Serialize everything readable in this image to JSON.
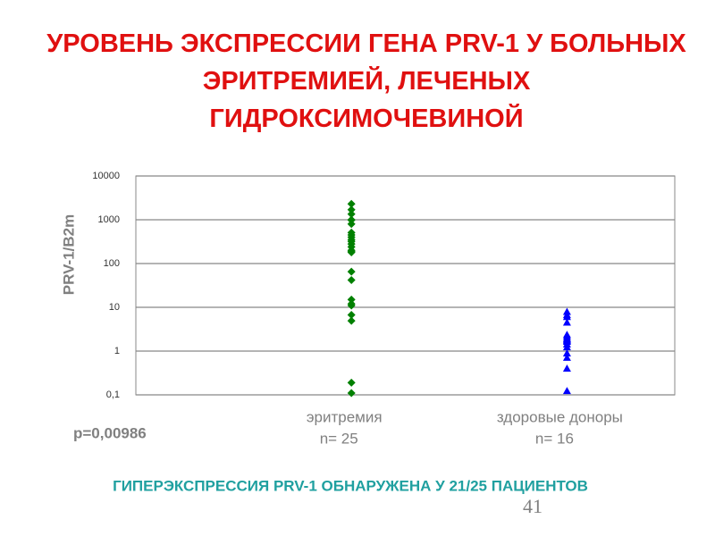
{
  "chart_data": {
    "type": "strip",
    "title": "УРОВЕНЬ ЭКСПРЕССИИ ГЕНА PRV-1 У БОЛЬНЫХ ЭРИТРЕМИЕЙ, ЛЕЧЕНЫХ ГИДРОКСИМОЧЕВИНОЙ",
    "y_label": "PRV-1/B2m",
    "log_scale": true,
    "grid": true,
    "ylim": [
      0.1,
      10000
    ],
    "yticks": [
      {
        "value": 0.1,
        "label": "0,1"
      },
      1,
      10,
      100,
      1000,
      10000
    ],
    "categories": [
      "эритремия",
      "здоровые доноры"
    ],
    "category_notes": [
      "n= 25",
      "n= 16"
    ],
    "annotation": "p=0,00986",
    "series": [
      {
        "color": "#008000",
        "marker": "diamond",
        "values": [
          2300,
          1700,
          1350,
          1000,
          980,
          800,
          510,
          450,
          400,
          350,
          320,
          280,
          240,
          200,
          190,
          180,
          65,
          42,
          15,
          12,
          11,
          6.7,
          4.9,
          0.19,
          0.11
        ]
      },
      {
        "color": "#0000ff",
        "marker": "triangle",
        "values": [
          7.7,
          6.5,
          5.9,
          4.4,
          2.3,
          2.1,
          1.9,
          1.8,
          1.7,
          1.6,
          1.4,
          1.2,
          0.87,
          0.69,
          0.39,
          0.12
        ]
      }
    ]
  },
  "footer": "ГИПЕРЭКСПРЕССИЯ PRV-1 ОБНАРУЖЕНА У 21/25 ПАЦИЕНТОВ",
  "page_number": "41"
}
